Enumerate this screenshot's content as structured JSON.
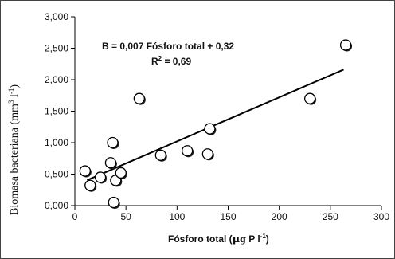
{
  "chart_data": {
    "type": "scatter",
    "xlabel_main": "Fósforo total (",
    "xlabel_mu": "μ",
    "xlabel_g": "g",
    "xlabel_rest": " P  l",
    "xlabel_exp": "-1",
    "xlabel_close": ")",
    "ylabel_main": "Biomasa bacteriana (mm",
    "ylabel_exp1": "3",
    "ylabel_mid": " l",
    "ylabel_exp2": "-1",
    "ylabel_close": ")",
    "xlim": [
      0,
      300
    ],
    "ylim": [
      0,
      3.0
    ],
    "x_ticks": [
      0,
      50,
      100,
      150,
      200,
      250,
      300
    ],
    "y_ticks": [
      0,
      0.5,
      1.0,
      1.5,
      2.0,
      2.5,
      3.0
    ],
    "x_tick_labels": [
      "0",
      "50",
      "100",
      "150",
      "200",
      "250",
      "300"
    ],
    "y_tick_labels": [
      "0,000",
      "0,500",
      "1,000",
      "1,500",
      "2,000",
      "2,500",
      "3,000"
    ],
    "points": [
      {
        "x": 10,
        "y": 0.55
      },
      {
        "x": 15,
        "y": 0.32
      },
      {
        "x": 25,
        "y": 0.45
      },
      {
        "x": 35,
        "y": 0.68
      },
      {
        "x": 37,
        "y": 1.0
      },
      {
        "x": 40,
        "y": 0.4
      },
      {
        "x": 45,
        "y": 0.52
      },
      {
        "x": 38,
        "y": 0.05
      },
      {
        "x": 63,
        "y": 1.7
      },
      {
        "x": 84,
        "y": 0.8
      },
      {
        "x": 110,
        "y": 0.87
      },
      {
        "x": 130,
        "y": 0.82
      },
      {
        "x": 132,
        "y": 1.22
      },
      {
        "x": 230,
        "y": 1.7
      },
      {
        "x": 265,
        "y": 2.55
      }
    ],
    "trendline": {
      "slope": 0.007,
      "intercept": 0.32,
      "x_from": 12,
      "x_to": 263
    },
    "equation": "B = 0,007 Fósforo total + 0,32",
    "r2_label": "R",
    "r2_exp": "2",
    "r2_value": " = 0,69",
    "grid": false,
    "legend": "none",
    "marker_fill": "#ffffff",
    "marker_stroke": "#000000"
  }
}
